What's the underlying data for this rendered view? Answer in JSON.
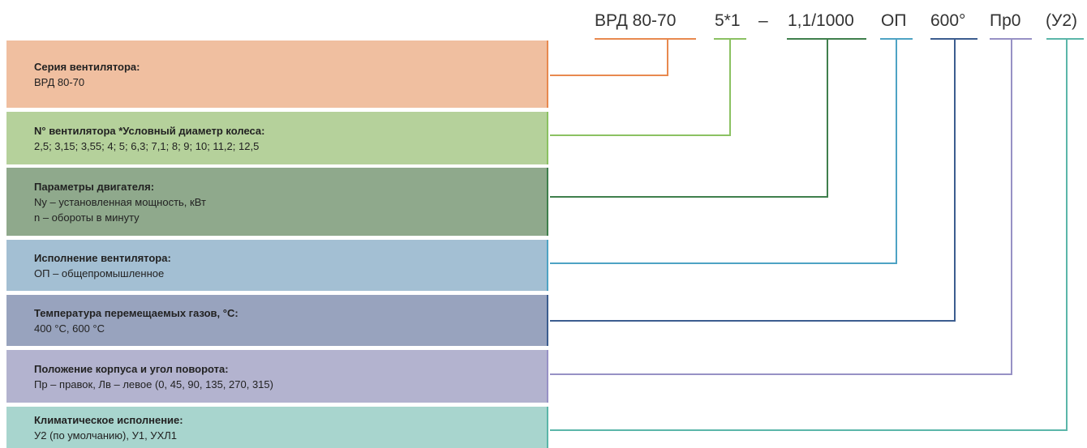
{
  "code": [
    "ВРД 80-70",
    "5*1",
    "–",
    "1,1/1000",
    "ОП",
    "600°",
    "Пр0",
    "(У2)"
  ],
  "rows": [
    {
      "title": "Серия вентилятора:",
      "lines": [
        "ВРД 80-70"
      ]
    },
    {
      "title": "N° вентилятора *Условный диаметр колеса:",
      "lines": [
        "2,5; 3,15; 3,55; 4; 5; 6,3; 7,1; 8; 9; 10; 11,2; 12,5"
      ]
    },
    {
      "title": "Параметры двигателя:",
      "lines": [
        "Ny – установленная мощность, кВт",
        "n  – обороты в минуту"
      ]
    },
    {
      "title": "Исполнение вентилятора:",
      "lines": [
        "ОП – общепромышленное"
      ]
    },
    {
      "title": "Температура перемещаемых газов, °C:",
      "lines": [
        "400 °C, 600 °C"
      ]
    },
    {
      "title": "Положение корпуса и угол поворота:",
      "lines": [
        "Пр – правок, Лв – левое (0, 45, 90, 135, 270, 315)"
      ]
    },
    {
      "title": "Климатическое исполнение:",
      "lines": [
        "У2 (по умолчанию), У1, УХЛ1"
      ]
    }
  ]
}
